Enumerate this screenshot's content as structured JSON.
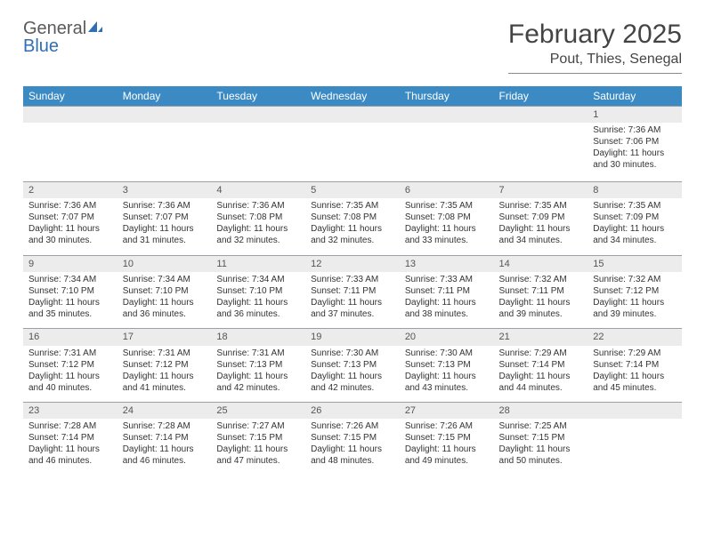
{
  "logo": {
    "word1": "General",
    "word2": "Blue"
  },
  "title": "February 2025",
  "location": "Pout, Thies, Senegal",
  "colors": {
    "header_bg": "#3b8ac4",
    "header_text": "#ffffff",
    "daynum_bg": "#ececec",
    "border": "#9aa0a6",
    "text": "#333333",
    "logo_gray": "#5a5a5a",
    "logo_blue": "#2f6fb3"
  },
  "daysOfWeek": [
    "Sunday",
    "Monday",
    "Tuesday",
    "Wednesday",
    "Thursday",
    "Friday",
    "Saturday"
  ],
  "weeks": [
    {
      "nums": [
        "",
        "",
        "",
        "",
        "",
        "",
        "1"
      ],
      "info": [
        "",
        "",
        "",
        "",
        "",
        "",
        "Sunrise: 7:36 AM\nSunset: 7:06 PM\nDaylight: 11 hours and 30 minutes."
      ]
    },
    {
      "nums": [
        "2",
        "3",
        "4",
        "5",
        "6",
        "7",
        "8"
      ],
      "info": [
        "Sunrise: 7:36 AM\nSunset: 7:07 PM\nDaylight: 11 hours and 30 minutes.",
        "Sunrise: 7:36 AM\nSunset: 7:07 PM\nDaylight: 11 hours and 31 minutes.",
        "Sunrise: 7:36 AM\nSunset: 7:08 PM\nDaylight: 11 hours and 32 minutes.",
        "Sunrise: 7:35 AM\nSunset: 7:08 PM\nDaylight: 11 hours and 32 minutes.",
        "Sunrise: 7:35 AM\nSunset: 7:08 PM\nDaylight: 11 hours and 33 minutes.",
        "Sunrise: 7:35 AM\nSunset: 7:09 PM\nDaylight: 11 hours and 34 minutes.",
        "Sunrise: 7:35 AM\nSunset: 7:09 PM\nDaylight: 11 hours and 34 minutes."
      ]
    },
    {
      "nums": [
        "9",
        "10",
        "11",
        "12",
        "13",
        "14",
        "15"
      ],
      "info": [
        "Sunrise: 7:34 AM\nSunset: 7:10 PM\nDaylight: 11 hours and 35 minutes.",
        "Sunrise: 7:34 AM\nSunset: 7:10 PM\nDaylight: 11 hours and 36 minutes.",
        "Sunrise: 7:34 AM\nSunset: 7:10 PM\nDaylight: 11 hours and 36 minutes.",
        "Sunrise: 7:33 AM\nSunset: 7:11 PM\nDaylight: 11 hours and 37 minutes.",
        "Sunrise: 7:33 AM\nSunset: 7:11 PM\nDaylight: 11 hours and 38 minutes.",
        "Sunrise: 7:32 AM\nSunset: 7:11 PM\nDaylight: 11 hours and 39 minutes.",
        "Sunrise: 7:32 AM\nSunset: 7:12 PM\nDaylight: 11 hours and 39 minutes."
      ]
    },
    {
      "nums": [
        "16",
        "17",
        "18",
        "19",
        "20",
        "21",
        "22"
      ],
      "info": [
        "Sunrise: 7:31 AM\nSunset: 7:12 PM\nDaylight: 11 hours and 40 minutes.",
        "Sunrise: 7:31 AM\nSunset: 7:12 PM\nDaylight: 11 hours and 41 minutes.",
        "Sunrise: 7:31 AM\nSunset: 7:13 PM\nDaylight: 11 hours and 42 minutes.",
        "Sunrise: 7:30 AM\nSunset: 7:13 PM\nDaylight: 11 hours and 42 minutes.",
        "Sunrise: 7:30 AM\nSunset: 7:13 PM\nDaylight: 11 hours and 43 minutes.",
        "Sunrise: 7:29 AM\nSunset: 7:14 PM\nDaylight: 11 hours and 44 minutes.",
        "Sunrise: 7:29 AM\nSunset: 7:14 PM\nDaylight: 11 hours and 45 minutes."
      ]
    },
    {
      "nums": [
        "23",
        "24",
        "25",
        "26",
        "27",
        "28",
        ""
      ],
      "info": [
        "Sunrise: 7:28 AM\nSunset: 7:14 PM\nDaylight: 11 hours and 46 minutes.",
        "Sunrise: 7:28 AM\nSunset: 7:14 PM\nDaylight: 11 hours and 46 minutes.",
        "Sunrise: 7:27 AM\nSunset: 7:15 PM\nDaylight: 11 hours and 47 minutes.",
        "Sunrise: 7:26 AM\nSunset: 7:15 PM\nDaylight: 11 hours and 48 minutes.",
        "Sunrise: 7:26 AM\nSunset: 7:15 PM\nDaylight: 11 hours and 49 minutes.",
        "Sunrise: 7:25 AM\nSunset: 7:15 PM\nDaylight: 11 hours and 50 minutes.",
        ""
      ]
    }
  ]
}
